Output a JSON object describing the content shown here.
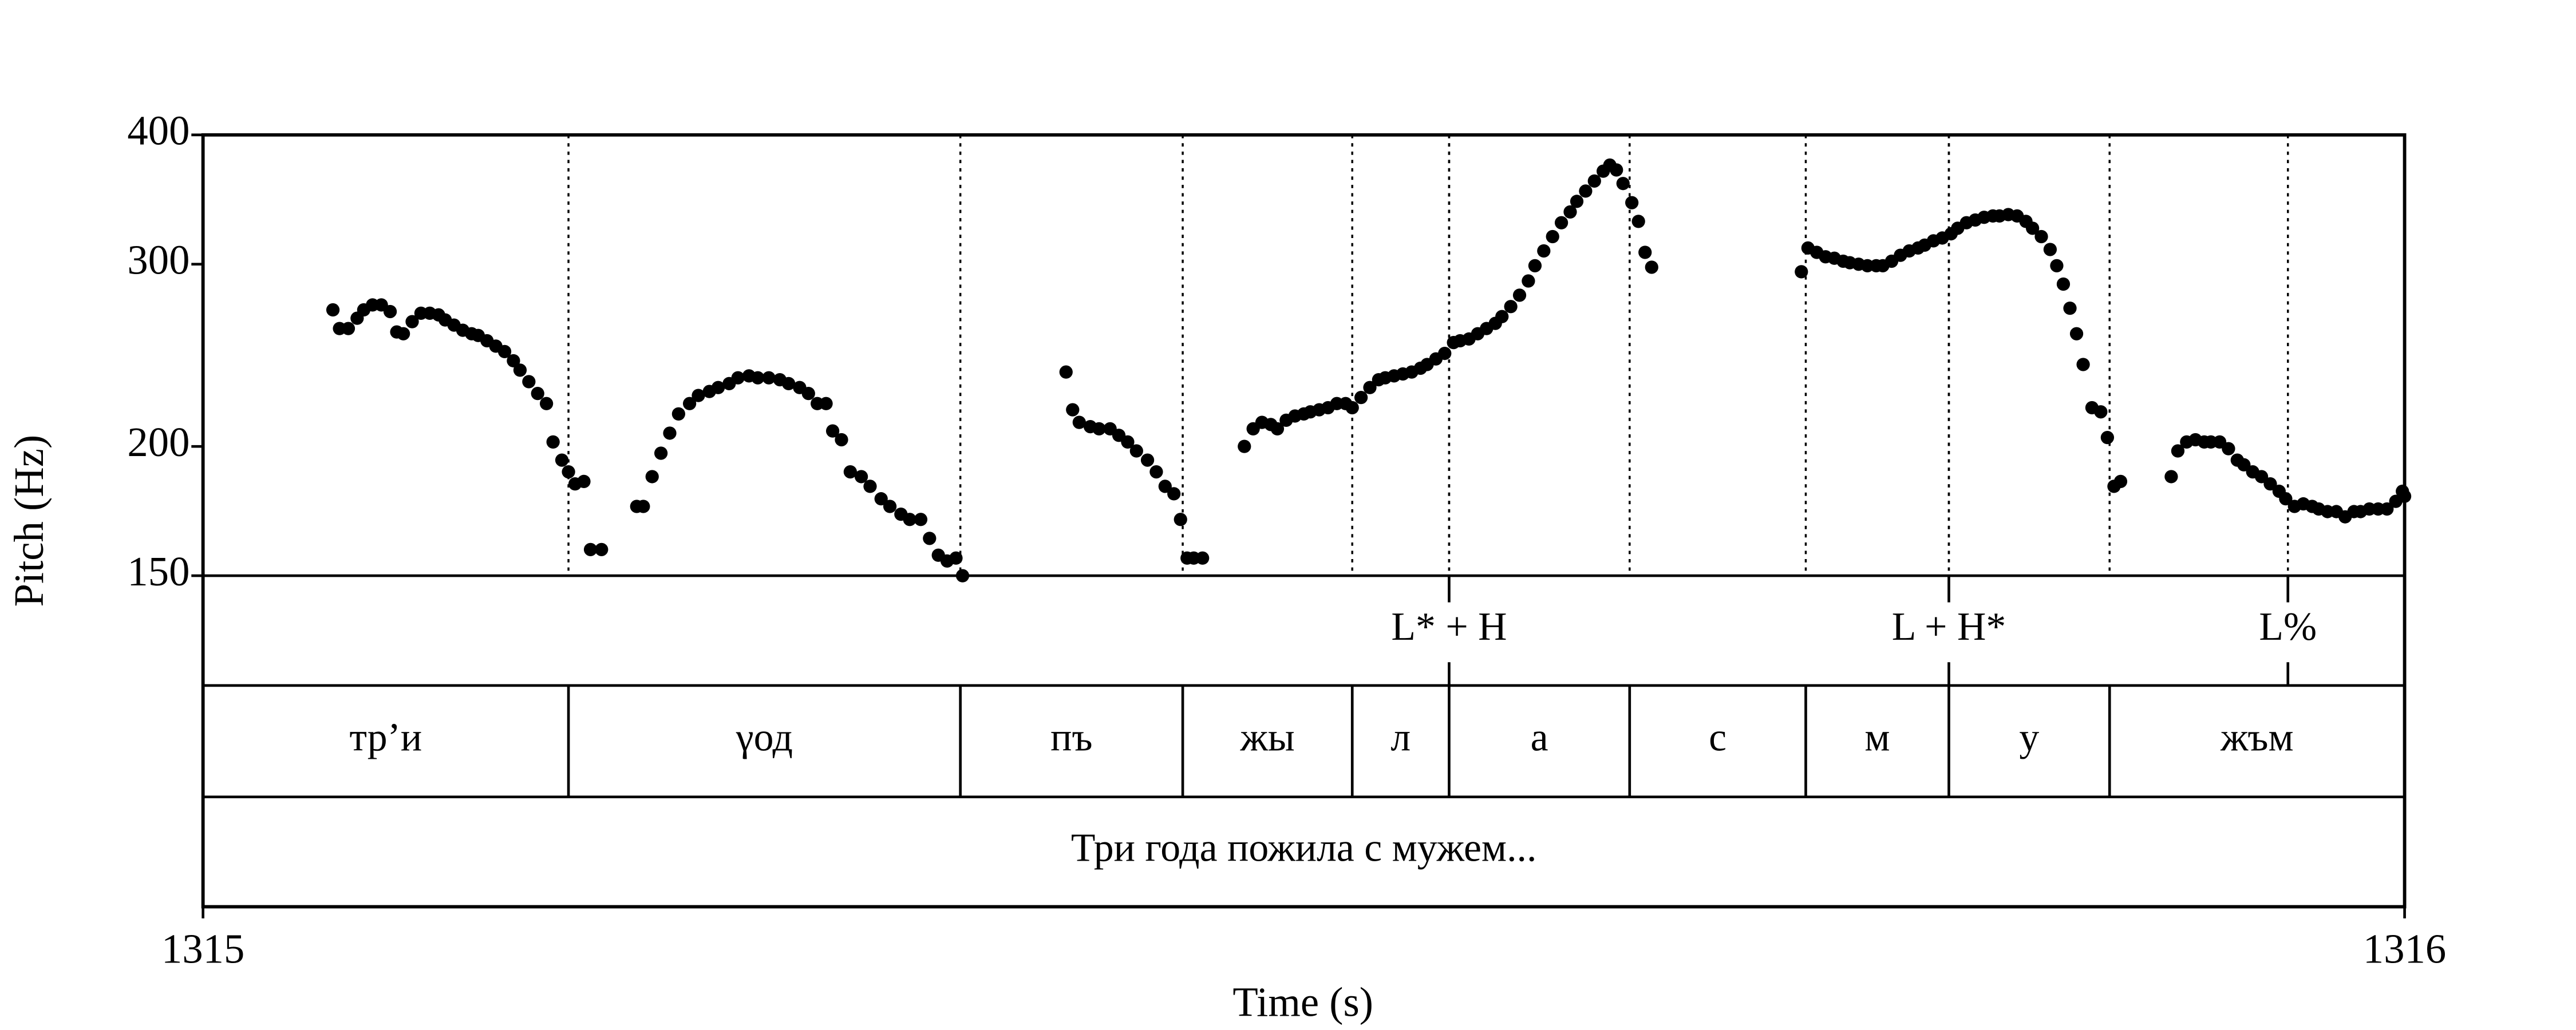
{
  "chart_data": {
    "type": "scatter",
    "xlabel": "Time (s)",
    "ylabel": "Pitch (Hz)",
    "xlim": [
      1315,
      1316
    ],
    "xticks": [
      1315,
      1316
    ],
    "ylim": [
      150,
      400
    ],
    "yticks": [
      150,
      200,
      300,
      400
    ],
    "log_y": true,
    "color": "#000000",
    "x": [
      1315.059,
      1315.062,
      1315.066,
      1315.07,
      1315.073,
      1315.077,
      1315.081,
      1315.085,
      1315.088,
      1315.091,
      1315.095,
      1315.099,
      1315.103,
      1315.107,
      1315.11,
      1315.114,
      1315.118,
      1315.122,
      1315.125,
      1315.129,
      1315.133,
      1315.137,
      1315.141,
      1315.144,
      1315.148,
      1315.152,
      1315.156,
      1315.159,
      1315.163,
      1315.166,
      1315.169,
      1315.173,
      1315.176,
      1315.181,
      1315.197,
      1315.2,
      1315.204,
      1315.208,
      1315.212,
      1315.216,
      1315.221,
      1315.225,
      1315.23,
      1315.234,
      1315.239,
      1315.243,
      1315.248,
      1315.252,
      1315.257,
      1315.262,
      1315.266,
      1315.271,
      1315.275,
      1315.279,
      1315.283,
      1315.286,
      1315.29,
      1315.294,
      1315.299,
      1315.303,
      1315.308,
      1315.312,
      1315.317,
      1315.321,
      1315.326,
      1315.33,
      1315.334,
      1315.338,
      1315.342,
      1315.345,
      1315.392,
      1315.395,
      1315.398,
      1315.403,
      1315.407,
      1315.412,
      1315.416,
      1315.42,
      1315.424,
      1315.429,
      1315.433,
      1315.437,
      1315.441,
      1315.444,
      1315.447,
      1315.45,
      1315.454,
      1315.473,
      1315.477,
      1315.481,
      1315.485,
      1315.488,
      1315.492,
      1315.496,
      1315.5,
      1315.503,
      1315.507,
      1315.511,
      1315.515,
      1315.519,
      1315.522,
      1315.526,
      1315.53,
      1315.534,
      1315.537,
      1315.541,
      1315.545,
      1315.549,
      1315.553,
      1315.556,
      1315.56,
      1315.564,
      1315.568,
      1315.571,
      1315.575,
      1315.579,
      1315.583,
      1315.587,
      1315.59,
      1315.594,
      1315.598,
      1315.602,
      1315.605,
      1315.609,
      1315.613,
      1315.617,
      1315.621,
      1315.624,
      1315.628,
      1315.632,
      1315.636,
      1315.639,
      1315.642,
      1315.645,
      1315.649,
      1315.652,
      1315.655,
      1315.658,
      1315.726,
      1315.729,
      1315.733,
      1315.737,
      1315.741,
      1315.745,
      1315.748,
      1315.752,
      1315.756,
      1315.76,
      1315.763,
      1315.767,
      1315.771,
      1315.775,
      1315.779,
      1315.782,
      1315.786,
      1315.79,
      1315.794,
      1315.797,
      1315.801,
      1315.805,
      1315.809,
      1315.813,
      1315.816,
      1315.82,
      1315.824,
      1315.828,
      1315.831,
      1315.835,
      1315.839,
      1315.842,
      1315.845,
      1315.848,
      1315.851,
      1315.854,
      1315.858,
      1315.862,
      1315.865,
      1315.868,
      1315.871,
      1315.894,
      1315.897,
      1315.901,
      1315.905,
      1315.909,
      1315.912,
      1315.916,
      1315.92,
      1315.924,
      1315.927,
      1315.931,
      1315.935,
      1315.939,
      1315.943,
      1315.946,
      1315.95,
      1315.954,
      1315.958,
      1315.961,
      1315.965,
      1315.969,
      1315.973,
      1315.977,
      1315.98,
      1315.984,
      1315.988,
      1315.992,
      1315.996,
      1315.999,
      1316
    ],
    "values": [
      271,
      260,
      260,
      266,
      271,
      274,
      274,
      270,
      258,
      257,
      264,
      269,
      269,
      268,
      265,
      262,
      259,
      257,
      256,
      253,
      250,
      247,
      242,
      237,
      231,
      225,
      220,
      202,
      194,
      189,
      184,
      185,
      159,
      159,
      175,
      175,
      187,
      197,
      206,
      215,
      220,
      224,
      226,
      228,
      230,
      233,
      234,
      233,
      233,
      232,
      230,
      228,
      225,
      220,
      220,
      207,
      203,
      189,
      187,
      183,
      178,
      175,
      172,
      170,
      170,
      163,
      157,
      155,
      156,
      150,
      236,
      217,
      211,
      209,
      208,
      208,
      205,
      202,
      198,
      194,
      189,
      183,
      180,
      170,
      156,
      156,
      156,
      200,
      208,
      211,
      210,
      208,
      212,
      214,
      215,
      216,
      217,
      218,
      220,
      220,
      218,
      223,
      228,
      232,
      233,
      234,
      235,
      236,
      238,
      240,
      243,
      246,
      252,
      253,
      254,
      257,
      260,
      263,
      267,
      273,
      280,
      289,
      299,
      309,
      319,
      329,
      337,
      345,
      353,
      361,
      369,
      374,
      370,
      359,
      344,
      330,
      308,
      298,
      295,
      311,
      308,
      305,
      304,
      302,
      301,
      300,
      299,
      299,
      299,
      302,
      306,
      309,
      311,
      313,
      316,
      318,
      321,
      325,
      329,
      331,
      333,
      334,
      334,
      335,
      334,
      330,
      325,
      319,
      310,
      299,
      287,
      272,
      257,
      240,
      218,
      216,
      204,
      183,
      185,
      187,
      198,
      202,
      203,
      202,
      202,
      202,
      199,
      194,
      192,
      189,
      187,
      184,
      181,
      178,
      175,
      176,
      175,
      174,
      173,
      173,
      171,
      173,
      173,
      174,
      174,
      174,
      177,
      181,
      179
    ],
    "tones": {
      "times": [
        1315.566,
        1315.793,
        1315.947
      ],
      "labels": [
        "L* + H",
        "L + H*",
        "L%"
      ]
    },
    "syllables": {
      "bounds": [
        1315.166,
        1315.344,
        1315.445,
        1315.522,
        1315.566,
        1315.648,
        1315.728,
        1315.793,
        1315.866
      ],
      "labels": [
        "тр’и",
        "γод",
        "пъ",
        "жы",
        "л",
        "а",
        "с",
        "м",
        "у",
        "жъм"
      ]
    },
    "sentence": "Три года пожила с мужем..."
  }
}
